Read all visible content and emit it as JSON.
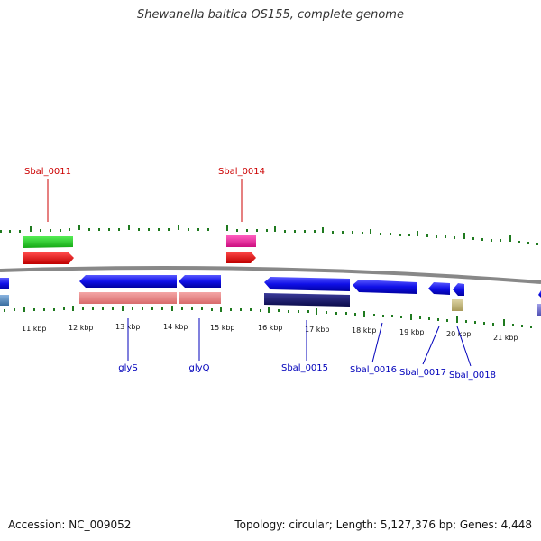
{
  "title": "Shewanella baltica OS155, complete genome",
  "footer": {
    "accession": "Accession: NC_009052",
    "summary": "Topology: circular; Length: 5,127,376 bp; Genes: 4,448"
  },
  "colors": {
    "backbone": "#888888",
    "ticks": "#1f7a1f",
    "label_red": "#cc0000",
    "label_blue": "#0000bb"
  },
  "scale_labels": [
    "11 kbp",
    "12 kbp",
    "13 kbp",
    "14 kbp",
    "15 kbp",
    "16 kbp",
    "17 kbp",
    "18 kbp",
    "19 kbp",
    "20 kbp",
    "21 kbp"
  ],
  "gene_labels": {
    "sbal_0011": "Sbal_0011",
    "sbal_0014": "Sbal_0014",
    "glys": "glyS",
    "glyq": "glyQ",
    "sbal_0015": "Sbal_0015",
    "sbal_0016": "Sbal_0016",
    "sbal_0017": "Sbal_0017",
    "sbal_0018": "Sbal_0018"
  }
}
